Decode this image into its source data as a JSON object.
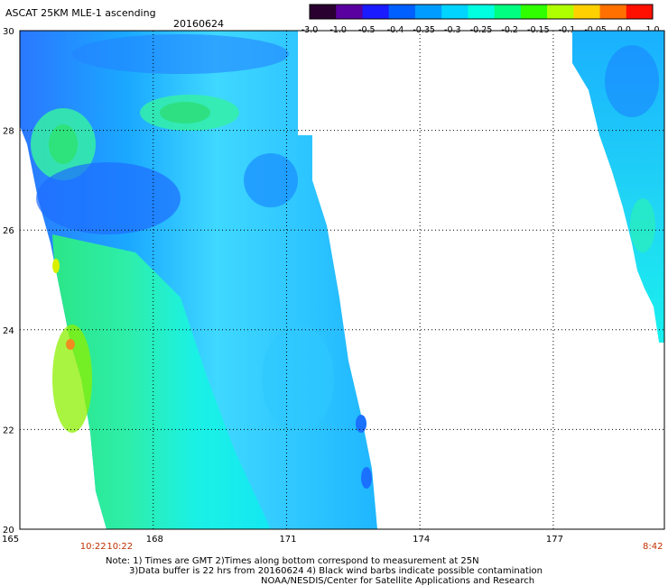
{
  "title": "ASCAT 25KM MLE-1 ascending",
  "date": "20160624",
  "colorbar": {
    "tick_labels": [
      "-3.0",
      "-1.0",
      "-0.5",
      "-0.4",
      "-0.35",
      "-0.3",
      "-0.25",
      "-0.2",
      "-0.15",
      "-0.1",
      "-0.05",
      "0.0",
      "1.0"
    ],
    "colors": [
      "#2a0030",
      "#5a00a0",
      "#1b1bff",
      "#0060ff",
      "#009cff",
      "#00d4ff",
      "#00ffe0",
      "#00ff80",
      "#30ff00",
      "#b0ff00",
      "#ffd000",
      "#ff7000",
      "#ff1000"
    ]
  },
  "axes": {
    "lat_labels": [
      "30",
      "28",
      "26",
      "24",
      "22",
      "20"
    ],
    "lat_values": [
      30,
      28,
      26,
      24,
      22,
      20
    ],
    "lon_labels": [
      "165",
      "168",
      "171",
      "174",
      "177"
    ],
    "lon_values": [
      165,
      168,
      171,
      174,
      177
    ],
    "lon_range": [
      165,
      179.5
    ],
    "lat_range": [
      20,
      30
    ]
  },
  "time_labels": [
    {
      "text": "10:22",
      "lon": 166.6
    },
    {
      "text": "10:22",
      "lon": 167.2
    },
    {
      "text": "8:42",
      "lon": 179.4
    }
  ],
  "notes": [
    "Note: 1) Times are GMT 2)Times along bottom correspond to measurement at 25N",
    "3)Data buffer is 22 hrs from 20160624 4) Black wind barbs indicate possible contamination",
    "NOAA/NESDIS/Center for Satellite Applications and Research"
  ],
  "swaths": [
    {
      "name": "west-swath"
    },
    {
      "name": "east-swath"
    }
  ]
}
